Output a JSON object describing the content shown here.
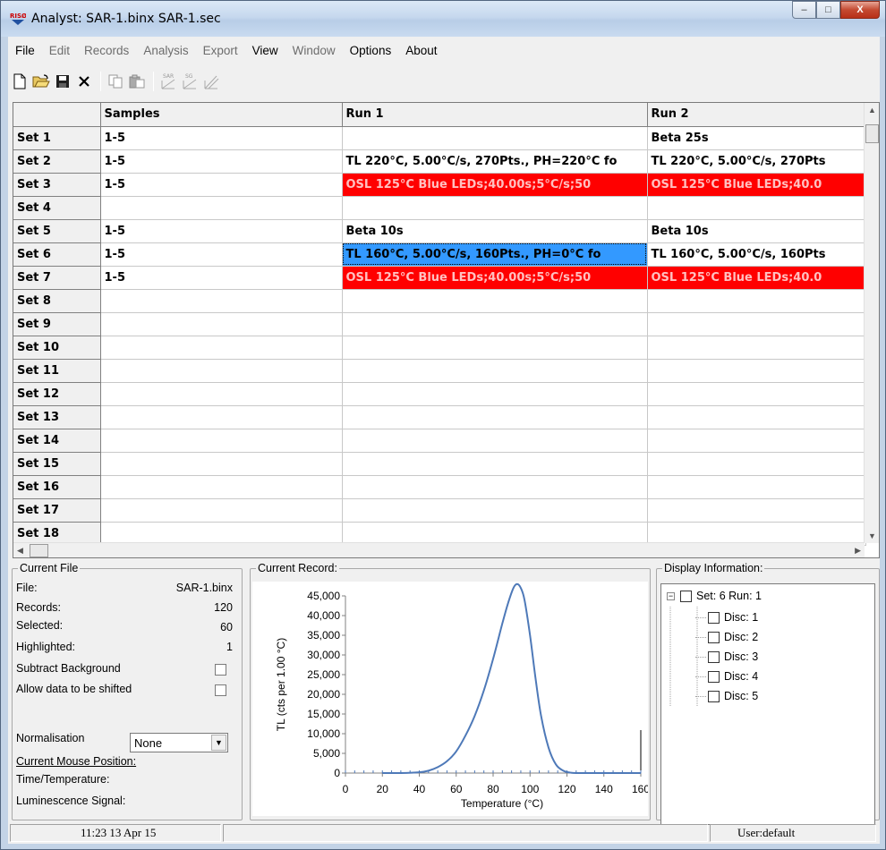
{
  "window": {
    "title": "Analyst: SAR-1.binx   SAR-1.sec",
    "min_glyph": "–",
    "max_glyph": "□",
    "close_glyph": "X"
  },
  "menu": [
    {
      "label": "File",
      "enabled": true
    },
    {
      "label": "Edit",
      "enabled": false
    },
    {
      "label": "Records",
      "enabled": false
    },
    {
      "label": "Analysis",
      "enabled": false
    },
    {
      "label": "Export",
      "enabled": false
    },
    {
      "label": "View",
      "enabled": true
    },
    {
      "label": "Window",
      "enabled": false
    },
    {
      "label": "Options",
      "enabled": true
    },
    {
      "label": "About",
      "enabled": true
    }
  ],
  "toolbar": {
    "icons": [
      "new-file-icon",
      "open-folder-icon",
      "save-icon",
      "delete-icon",
      "copy-icon",
      "paste-icon",
      "sar-icon",
      "sg-icon",
      "edit-sequence-icon"
    ],
    "sar_label": "SAR",
    "sg_label": "SG"
  },
  "grid": {
    "columns": [
      "",
      "Samples",
      "Run 1",
      "Run 2"
    ],
    "rows": [
      {
        "set": "Set 1",
        "samples": "1-5",
        "run1": "",
        "run2": "Beta 25s",
        "style1": "",
        "style2": ""
      },
      {
        "set": "Set 2",
        "samples": "1-5",
        "run1": "TL 220°C, 5.00°C/s, 270Pts., PH=220°C fo",
        "run2": "TL 220°C, 5.00°C/s, 270Pts",
        "style1": "",
        "style2": ""
      },
      {
        "set": "Set 3",
        "samples": "1-5",
        "run1": "OSL 125°C Blue LEDs;40.00s;5°C/s;50",
        "run2": "OSL 125°C Blue LEDs;40.0",
        "style1": "red",
        "style2": "red"
      },
      {
        "set": "Set 4",
        "samples": "",
        "run1": "",
        "run2": "",
        "style1": "",
        "style2": ""
      },
      {
        "set": "Set 5",
        "samples": "1-5",
        "run1": "Beta 10s",
        "run2": "Beta 10s",
        "style1": "",
        "style2": ""
      },
      {
        "set": "Set 6",
        "samples": "1-5",
        "run1": "TL 160°C, 5.00°C/s, 160Pts., PH=0°C fo",
        "run2": "TL 160°C, 5.00°C/s, 160Pts",
        "style1": "sel",
        "style2": ""
      },
      {
        "set": "Set 7",
        "samples": "1-5",
        "run1": "OSL 125°C Blue LEDs;40.00s;5°C/s;50",
        "run2": "OSL 125°C Blue LEDs;40.0",
        "style1": "red",
        "style2": "red"
      },
      {
        "set": "Set 8",
        "samples": "",
        "run1": "",
        "run2": "",
        "style1": "",
        "style2": ""
      },
      {
        "set": "Set 9",
        "samples": "",
        "run1": "",
        "run2": "",
        "style1": "",
        "style2": ""
      },
      {
        "set": "Set 10",
        "samples": "",
        "run1": "",
        "run2": "",
        "style1": "",
        "style2": ""
      },
      {
        "set": "Set 11",
        "samples": "",
        "run1": "",
        "run2": "",
        "style1": "",
        "style2": ""
      },
      {
        "set": "Set 12",
        "samples": "",
        "run1": "",
        "run2": "",
        "style1": "",
        "style2": ""
      },
      {
        "set": "Set 13",
        "samples": "",
        "run1": "",
        "run2": "",
        "style1": "",
        "style2": ""
      },
      {
        "set": "Set 14",
        "samples": "",
        "run1": "",
        "run2": "",
        "style1": "",
        "style2": ""
      },
      {
        "set": "Set 15",
        "samples": "",
        "run1": "",
        "run2": "",
        "style1": "",
        "style2": ""
      },
      {
        "set": "Set 16",
        "samples": "",
        "run1": "",
        "run2": "",
        "style1": "",
        "style2": ""
      },
      {
        "set": "Set 17",
        "samples": "",
        "run1": "",
        "run2": "",
        "style1": "",
        "style2": ""
      },
      {
        "set": "Set 18",
        "samples": "",
        "run1": "",
        "run2": "",
        "style1": "",
        "style2": ""
      }
    ]
  },
  "current_file": {
    "title": "Current File",
    "file_label": "File:",
    "file_value": "SAR-1.binx",
    "records_label": "Records:",
    "records_value": "120",
    "selected_label": "Selected:",
    "selected_value": "60",
    "highlighted_label": "Highlighted:",
    "highlighted_value": "1",
    "subtract_label": "Subtract Background",
    "shift_label": "Allow data to be shifted",
    "normalisation_label": "Normalisation",
    "normalisation_value": "None",
    "mouse_pos_label": "Current Mouse Position:",
    "time_temp_label": "Time/Temperature:",
    "lum_label": "Luminescence Signal:"
  },
  "current_record": {
    "title": "Current Record:"
  },
  "chart_data": {
    "type": "line",
    "xlabel": "Temperature (°C)",
    "ylabel": "TL (cts per 1.00 °C)",
    "xlim": [
      0,
      160
    ],
    "ylim": [
      0,
      45000
    ],
    "xticks": [
      0,
      20,
      40,
      60,
      80,
      100,
      120,
      140,
      160
    ],
    "yticks": [
      0,
      5000,
      10000,
      15000,
      20000,
      25000,
      30000,
      35000,
      40000,
      45000
    ],
    "ytick_labels": [
      "0",
      "5,000",
      "10,000",
      "15,000",
      "20,000",
      "25,000",
      "30,000",
      "35,000",
      "40,000",
      "45,000"
    ],
    "color": "#4e79b8",
    "x": [
      20,
      30,
      40,
      45,
      50,
      55,
      60,
      65,
      70,
      75,
      80,
      85,
      88,
      91,
      93,
      95,
      97,
      100,
      103,
      106,
      110,
      114,
      118,
      122,
      126,
      140,
      160
    ],
    "y": [
      0,
      0,
      200,
      600,
      1500,
      3000,
      5500,
      9500,
      14500,
      21000,
      29000,
      38000,
      43000,
      47000,
      48000,
      47000,
      44000,
      35000,
      24000,
      14500,
      6500,
      2200,
      600,
      100,
      0,
      0,
      0
    ]
  },
  "display_info": {
    "title": "Display Information:",
    "root": "Set: 6 Run: 1",
    "discs": [
      "Disc: 1",
      "Disc: 2",
      "Disc: 3",
      "Disc: 4",
      "Disc: 5"
    ]
  },
  "status": {
    "datetime": "11:23  13 Apr 15",
    "middle": "",
    "user": "User:default"
  }
}
